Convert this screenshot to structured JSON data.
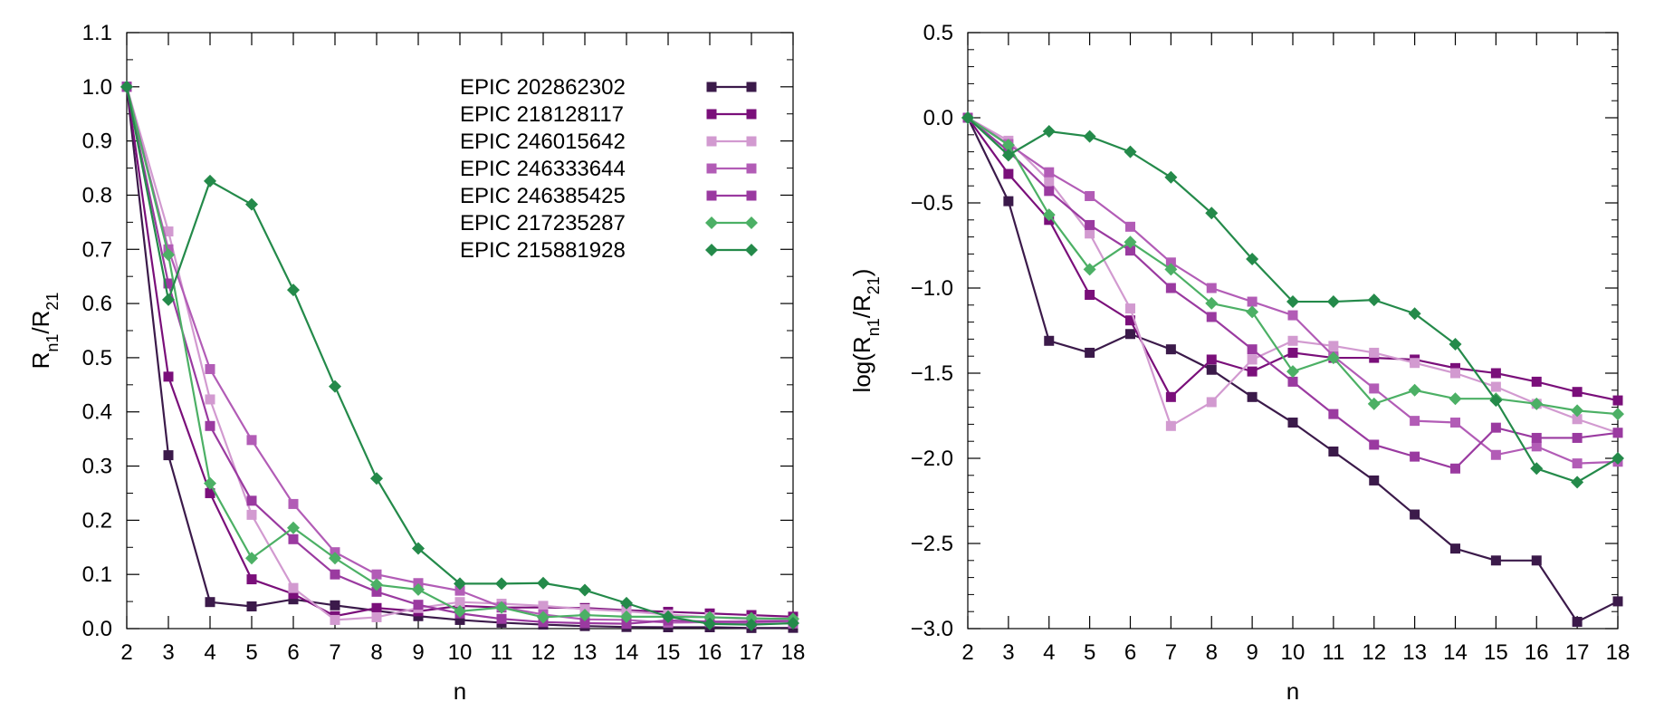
{
  "chart_data": [
    {
      "type": "line",
      "xlabel": "n",
      "ylabel_main": "R",
      "ylabel_sub1": "n1",
      "ylabel_mid": "/R",
      "ylabel_sub2": "21",
      "xlim": [
        2,
        18
      ],
      "ylim": [
        0,
        1.1
      ],
      "xticks": [
        2,
        3,
        4,
        5,
        6,
        7,
        8,
        9,
        10,
        11,
        12,
        13,
        14,
        15,
        16,
        17,
        18
      ],
      "xtick_labels": [
        "2",
        "3",
        "4",
        "5",
        "6",
        "7",
        "8",
        "9",
        "10",
        "11",
        "12",
        "13",
        "14",
        "15",
        "16",
        "17",
        "18"
      ],
      "yticks": [
        0,
        0.1,
        0.2,
        0.3,
        0.4,
        0.5,
        0.6,
        0.7,
        0.8,
        0.9,
        1.0,
        1.1
      ],
      "ytick_labels": [
        "0.0",
        "0.1",
        "0.2",
        "0.3",
        "0.4",
        "0.5",
        "0.6",
        "0.7",
        "0.8",
        "0.9",
        "1.0",
        "1.1"
      ],
      "legend_position": "top-right",
      "series": [
        {
          "name": "EPIC 202862302",
          "color": "#3b1a4a",
          "marker": "square",
          "x": [
            2,
            3,
            4,
            5,
            6,
            7,
            8,
            9,
            10,
            11,
            12,
            13,
            14,
            15,
            16,
            17,
            18
          ],
          "values": [
            1.0,
            0.32,
            0.049,
            0.041,
            0.054,
            0.043,
            0.033,
            0.023,
            0.016,
            0.011,
            0.0074,
            0.0047,
            0.003,
            0.0025,
            0.0025,
            0.0011,
            0.0014
          ]
        },
        {
          "name": "EPIC 218128117",
          "color": "#7a0f7a",
          "marker": "square",
          "x": [
            2,
            3,
            4,
            5,
            6,
            7,
            8,
            9,
            10,
            11,
            12,
            13,
            14,
            15,
            16,
            17,
            18
          ],
          "values": [
            1.0,
            0.465,
            0.25,
            0.091,
            0.064,
            0.023,
            0.038,
            0.032,
            0.042,
            0.039,
            0.039,
            0.038,
            0.034,
            0.031,
            0.028,
            0.025,
            0.022
          ]
        },
        {
          "name": "EPIC 246015642",
          "color": "#d29ad0",
          "marker": "square",
          "x": [
            2,
            3,
            4,
            5,
            6,
            7,
            8,
            9,
            10,
            11,
            12,
            13,
            14,
            15,
            16,
            17,
            18
          ],
          "values": [
            1.0,
            0.733,
            0.423,
            0.21,
            0.075,
            0.016,
            0.021,
            0.038,
            0.049,
            0.046,
            0.042,
            0.036,
            0.032,
            0.026,
            0.021,
            0.017,
            0.014
          ]
        },
        {
          "name": "EPIC 246333644",
          "color": "#b25cb6",
          "marker": "square",
          "x": [
            2,
            3,
            4,
            5,
            6,
            7,
            8,
            9,
            10,
            11,
            12,
            13,
            14,
            15,
            16,
            17,
            18
          ],
          "values": [
            1.0,
            0.7,
            0.479,
            0.348,
            0.23,
            0.141,
            0.1,
            0.084,
            0.07,
            0.04,
            0.026,
            0.017,
            0.016,
            0.011,
            0.012,
            0.0095,
            0.0095
          ]
        },
        {
          "name": "EPIC 246385425",
          "color": "#9a3aa0",
          "marker": "square",
          "x": [
            2,
            3,
            4,
            5,
            6,
            7,
            8,
            9,
            10,
            11,
            12,
            13,
            14,
            15,
            16,
            17,
            18
          ],
          "values": [
            1.0,
            0.637,
            0.374,
            0.236,
            0.165,
            0.1,
            0.068,
            0.044,
            0.028,
            0.018,
            0.012,
            0.01,
            0.009,
            0.015,
            0.013,
            0.013,
            0.014
          ]
        },
        {
          "name": "EPIC 217235287",
          "color": "#4cb065",
          "marker": "diamond",
          "x": [
            2,
            3,
            4,
            5,
            6,
            7,
            8,
            9,
            10,
            11,
            12,
            13,
            14,
            15,
            16,
            17,
            18
          ],
          "values": [
            1.0,
            0.69,
            0.268,
            0.13,
            0.186,
            0.13,
            0.081,
            0.072,
            0.032,
            0.039,
            0.021,
            0.025,
            0.022,
            0.022,
            0.021,
            0.019,
            0.018
          ]
        },
        {
          "name": "EPIC 215881928",
          "color": "#248a4a",
          "marker": "diamond",
          "x": [
            2,
            3,
            4,
            5,
            6,
            7,
            8,
            9,
            10,
            11,
            12,
            13,
            14,
            15,
            16,
            17,
            18
          ],
          "values": [
            1.0,
            0.607,
            0.826,
            0.783,
            0.625,
            0.447,
            0.277,
            0.148,
            0.083,
            0.083,
            0.084,
            0.071,
            0.047,
            0.022,
            0.0088,
            0.0072,
            0.01
          ]
        }
      ]
    },
    {
      "type": "line",
      "xlabel": "n",
      "ylabel_main": "log(R",
      "ylabel_sub1": "n1",
      "ylabel_mid": "/R",
      "ylabel_sub2": "21",
      "ylabel_end": ")",
      "xlim": [
        2,
        18
      ],
      "ylim": [
        -3.0,
        0.5
      ],
      "xticks": [
        2,
        3,
        4,
        5,
        6,
        7,
        8,
        9,
        10,
        11,
        12,
        13,
        14,
        15,
        16,
        17,
        18
      ],
      "xtick_labels": [
        "2",
        "3",
        "4",
        "5",
        "6",
        "7",
        "8",
        "9",
        "10",
        "11",
        "12",
        "13",
        "14",
        "15",
        "16",
        "17",
        "18"
      ],
      "yticks": [
        -3.0,
        -2.5,
        -2.0,
        -1.5,
        -1.0,
        -0.5,
        0.0,
        0.5
      ],
      "ytick_labels": [
        "−3.0",
        "−2.5",
        "−2.0",
        "−1.5",
        "−1.0",
        "−0.5",
        "0.0",
        "0.5"
      ],
      "series": [
        {
          "name": "EPIC 202862302",
          "color": "#3b1a4a",
          "marker": "square",
          "x": [
            2,
            3,
            4,
            5,
            6,
            7,
            8,
            9,
            10,
            11,
            12,
            13,
            14,
            15,
            16,
            17,
            18
          ],
          "values": [
            0.0,
            -0.49,
            -1.31,
            -1.38,
            -1.27,
            -1.36,
            -1.48,
            -1.64,
            -1.79,
            -1.96,
            -2.13,
            -2.33,
            -2.53,
            -2.6,
            -2.6,
            -2.96,
            -2.84
          ]
        },
        {
          "name": "EPIC 218128117",
          "color": "#7a0f7a",
          "marker": "square",
          "x": [
            2,
            3,
            4,
            5,
            6,
            7,
            8,
            9,
            10,
            11,
            12,
            13,
            14,
            15,
            16,
            17,
            18
          ],
          "values": [
            0.0,
            -0.33,
            -0.6,
            -1.04,
            -1.19,
            -1.64,
            -1.42,
            -1.49,
            -1.38,
            -1.41,
            -1.41,
            -1.42,
            -1.47,
            -1.5,
            -1.55,
            -1.61,
            -1.66
          ]
        },
        {
          "name": "EPIC 246015642",
          "color": "#d29ad0",
          "marker": "square",
          "x": [
            2,
            3,
            4,
            5,
            6,
            7,
            8,
            9,
            10,
            11,
            12,
            13,
            14,
            15,
            16,
            17,
            18
          ],
          "values": [
            0.0,
            -0.135,
            -0.37,
            -0.68,
            -1.12,
            -1.81,
            -1.67,
            -1.42,
            -1.31,
            -1.34,
            -1.38,
            -1.44,
            -1.5,
            -1.58,
            -1.68,
            -1.77,
            -1.85
          ]
        },
        {
          "name": "EPIC 246333644",
          "color": "#b25cb6",
          "marker": "square",
          "x": [
            2,
            3,
            4,
            5,
            6,
            7,
            8,
            9,
            10,
            11,
            12,
            13,
            14,
            15,
            16,
            17,
            18
          ],
          "values": [
            0.0,
            -0.155,
            -0.32,
            -0.46,
            -0.64,
            -0.85,
            -1.0,
            -1.08,
            -1.16,
            -1.4,
            -1.59,
            -1.78,
            -1.79,
            -1.98,
            -1.93,
            -2.03,
            -2.02
          ]
        },
        {
          "name": "EPIC 246385425",
          "color": "#9a3aa0",
          "marker": "square",
          "x": [
            2,
            3,
            4,
            5,
            6,
            7,
            8,
            9,
            10,
            11,
            12,
            13,
            14,
            15,
            16,
            17,
            18
          ],
          "values": [
            0.0,
            -0.196,
            -0.43,
            -0.63,
            -0.78,
            -1.0,
            -1.17,
            -1.36,
            -1.55,
            -1.74,
            -1.92,
            -1.99,
            -2.06,
            -1.82,
            -1.88,
            -1.88,
            -1.85
          ]
        },
        {
          "name": "EPIC 217235287",
          "color": "#4cb065",
          "marker": "diamond",
          "x": [
            2,
            3,
            4,
            5,
            6,
            7,
            8,
            9,
            10,
            11,
            12,
            13,
            14,
            15,
            16,
            17,
            18
          ],
          "values": [
            0.0,
            -0.16,
            -0.57,
            -0.89,
            -0.73,
            -0.89,
            -1.09,
            -1.14,
            -1.49,
            -1.41,
            -1.68,
            -1.6,
            -1.65,
            -1.65,
            -1.68,
            -1.72,
            -1.74
          ]
        },
        {
          "name": "EPIC 215881928",
          "color": "#248a4a",
          "marker": "diamond",
          "x": [
            2,
            3,
            4,
            5,
            6,
            7,
            8,
            9,
            10,
            11,
            12,
            13,
            14,
            15,
            16,
            17,
            18
          ],
          "values": [
            0.0,
            -0.22,
            -0.08,
            -0.11,
            -0.2,
            -0.35,
            -0.56,
            -0.83,
            -1.08,
            -1.08,
            -1.07,
            -1.15,
            -1.33,
            -1.66,
            -2.06,
            -2.14,
            -2.0
          ]
        }
      ]
    }
  ]
}
